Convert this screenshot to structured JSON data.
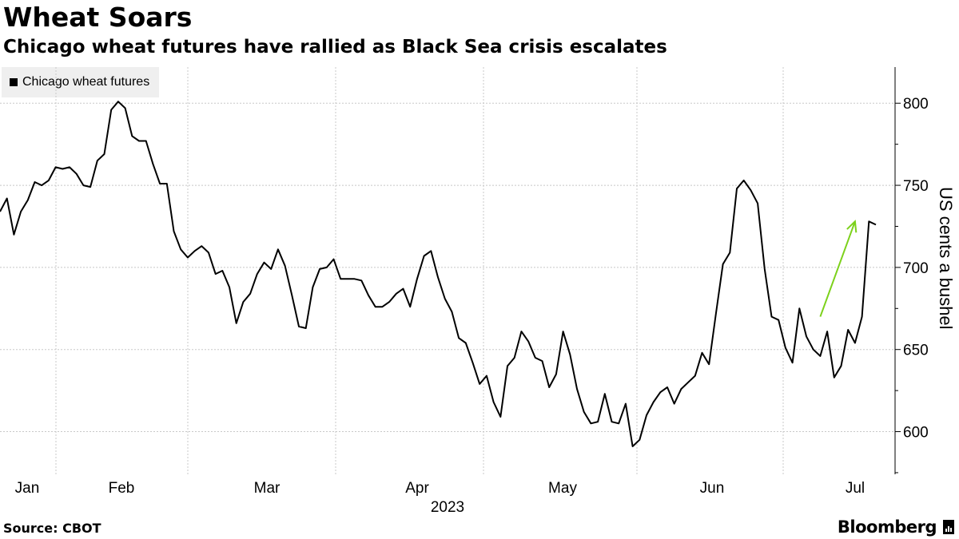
{
  "header": {
    "title": "Wheat Soars",
    "subtitle": "Chicago wheat futures have rallied as Black Sea crisis escalates"
  },
  "legend": {
    "label": "Chicago wheat futures"
  },
  "footer": {
    "source": "Source: CBOT",
    "brand": "Bloomberg"
  },
  "colors": {
    "line": "#000000",
    "arrow": "#7cd11b",
    "grid": "#c8c8c8",
    "legend_bg": "#efefef"
  },
  "chart_data": {
    "type": "line",
    "title": "Wheat Soars",
    "subtitle": "Chicago wheat futures have rallied as Black Sea crisis escalates",
    "ylabel": "US cents a bushel",
    "xlabel": "2023",
    "ylim": [
      574,
      822
    ],
    "yticks": [
      600,
      650,
      700,
      750,
      800
    ],
    "months": [
      "Jan",
      "Feb",
      "Mar",
      "Apr",
      "May",
      "Jun",
      "Jul"
    ],
    "year_label": "2023",
    "series": [
      {
        "name": "Chicago wheat futures",
        "values": [
          734,
          742,
          720,
          734,
          741,
          752,
          750,
          753,
          761,
          760,
          761,
          757,
          750,
          749,
          765,
          769,
          796,
          801,
          797,
          780,
          777,
          777,
          763,
          751,
          751,
          722,
          711,
          706,
          710,
          713,
          709,
          696,
          698,
          688,
          666,
          679,
          684,
          696,
          703,
          699,
          711,
          701,
          683,
          664,
          663,
          688,
          699,
          700,
          705,
          693,
          693,
          693,
          692,
          683,
          676,
          676,
          679,
          684,
          687,
          676,
          693,
          707,
          710,
          694,
          681,
          673,
          657,
          654,
          642,
          629,
          634,
          618,
          609,
          640,
          645,
          661,
          655,
          645,
          643,
          627,
          635,
          661,
          647,
          626,
          612,
          605,
          606,
          623,
          606,
          605,
          617,
          591,
          595,
          610,
          618,
          624,
          627,
          617,
          626,
          630,
          634,
          648,
          641,
          672,
          702,
          709,
          748,
          753,
          747,
          739,
          699,
          670,
          668,
          651,
          642,
          675,
          658,
          650,
          646,
          661,
          633,
          640,
          662,
          654,
          670,
          728,
          726
        ]
      }
    ],
    "annotation": {
      "type": "arrow",
      "from": [
        118,
        670
      ],
      "to": [
        123,
        728
      ]
    }
  }
}
